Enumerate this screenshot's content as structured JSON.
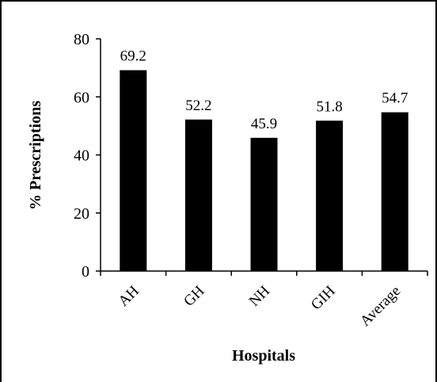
{
  "chart_data": {
    "type": "bar",
    "categories": [
      "AH",
      "GH",
      "NH",
      "GIH",
      "Average"
    ],
    "values": [
      69.2,
      52.2,
      45.9,
      51.8,
      54.7
    ],
    "data_labels": [
      "69.2",
      "52.2",
      "45.9",
      "51.8",
      "54.7"
    ],
    "title": "",
    "xlabel": "Hospitals",
    "ylabel": "% Prescriptions",
    "ylim": [
      0,
      80
    ],
    "yticks": [
      0,
      20,
      40,
      60,
      80
    ],
    "grid": false,
    "legend": "none",
    "bar_color": "#000000"
  }
}
